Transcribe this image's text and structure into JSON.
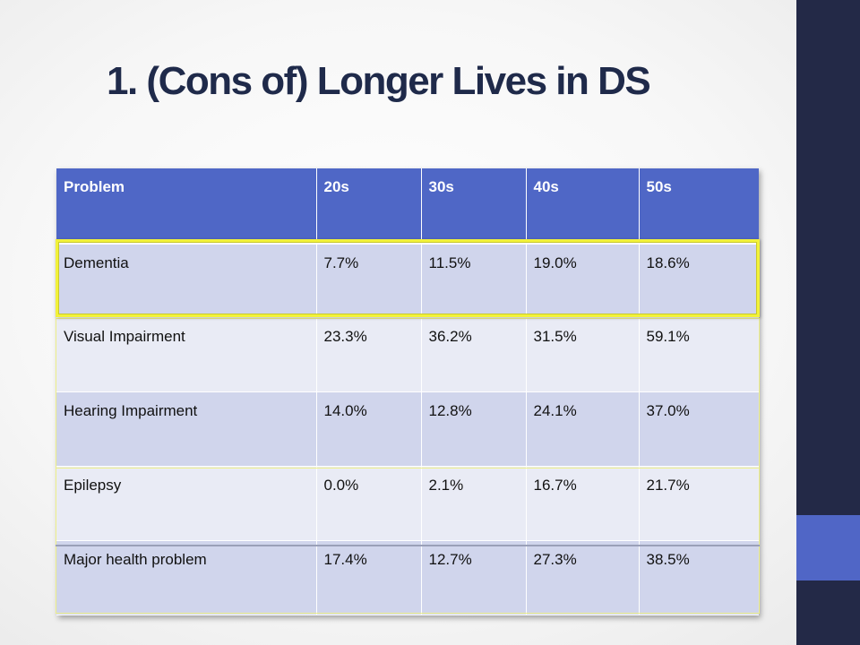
{
  "slide": {
    "title": "1. (Cons of) Longer Lives in DS"
  },
  "table": {
    "headers": [
      "Problem",
      "20s",
      "30s",
      "40s",
      "50s"
    ],
    "rows": [
      [
        "Dementia",
        "7.7%",
        "11.5%",
        "19.0%",
        "18.6%"
      ],
      [
        "Visual Impairment",
        "23.3%",
        "36.2%",
        "31.5%",
        "59.1%"
      ],
      [
        "Hearing Impairment",
        "14.0%",
        "12.8%",
        "24.1%",
        "37.0%"
      ],
      [
        "Epilepsy",
        "0.0%",
        "2.1%",
        "16.7%",
        "21.7%"
      ],
      [
        "Major health problem",
        "17.4%",
        "12.7%",
        "27.3%",
        "38.5%"
      ]
    ]
  },
  "colors": {
    "header_background": "#4f67c6",
    "row_dark": "#d0d5ec",
    "row_light": "#e9ebf5",
    "side_bar": "#232947",
    "side_accent": "#5066c6",
    "highlight": "#f2f23a"
  }
}
